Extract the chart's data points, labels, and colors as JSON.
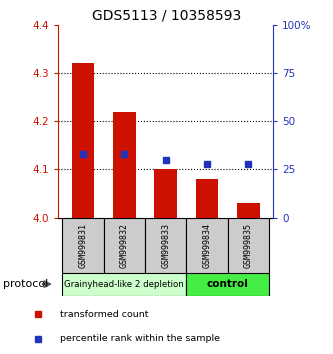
{
  "title": "GDS5113 / 10358593",
  "samples": [
    "GSM999831",
    "GSM999832",
    "GSM999833",
    "GSM999834",
    "GSM999835"
  ],
  "bar_values": [
    4.32,
    4.22,
    4.1,
    4.08,
    4.03
  ],
  "bar_bottom": 4.0,
  "percentile_values": [
    33,
    33,
    30,
    28,
    28
  ],
  "ylim_left": [
    4.0,
    4.4
  ],
  "ylim_right": [
    0,
    100
  ],
  "yticks_left": [
    4.0,
    4.1,
    4.2,
    4.3,
    4.4
  ],
  "yticks_right": [
    0,
    25,
    50,
    75,
    100
  ],
  "ytick_labels_right": [
    "0",
    "25",
    "50",
    "75",
    "100%"
  ],
  "grid_lines": [
    4.1,
    4.2,
    4.3
  ],
  "bar_color": "#cc1100",
  "percentile_color": "#2233bb",
  "group1_label": "Grainyhead-like 2 depletion",
  "group2_label": "control",
  "group1_bg": "#ccffcc",
  "group2_bg": "#44ee44",
  "protocol_label": "protocol",
  "legend_bar_label": "transformed count",
  "legend_pct_label": "percentile rank within the sample",
  "left_axis_color": "#cc1100",
  "right_axis_color": "#2233bb",
  "bar_width": 0.55,
  "marker_size": 5,
  "sample_box_color": "#cccccc",
  "n_group1": 3,
  "n_group2": 2
}
